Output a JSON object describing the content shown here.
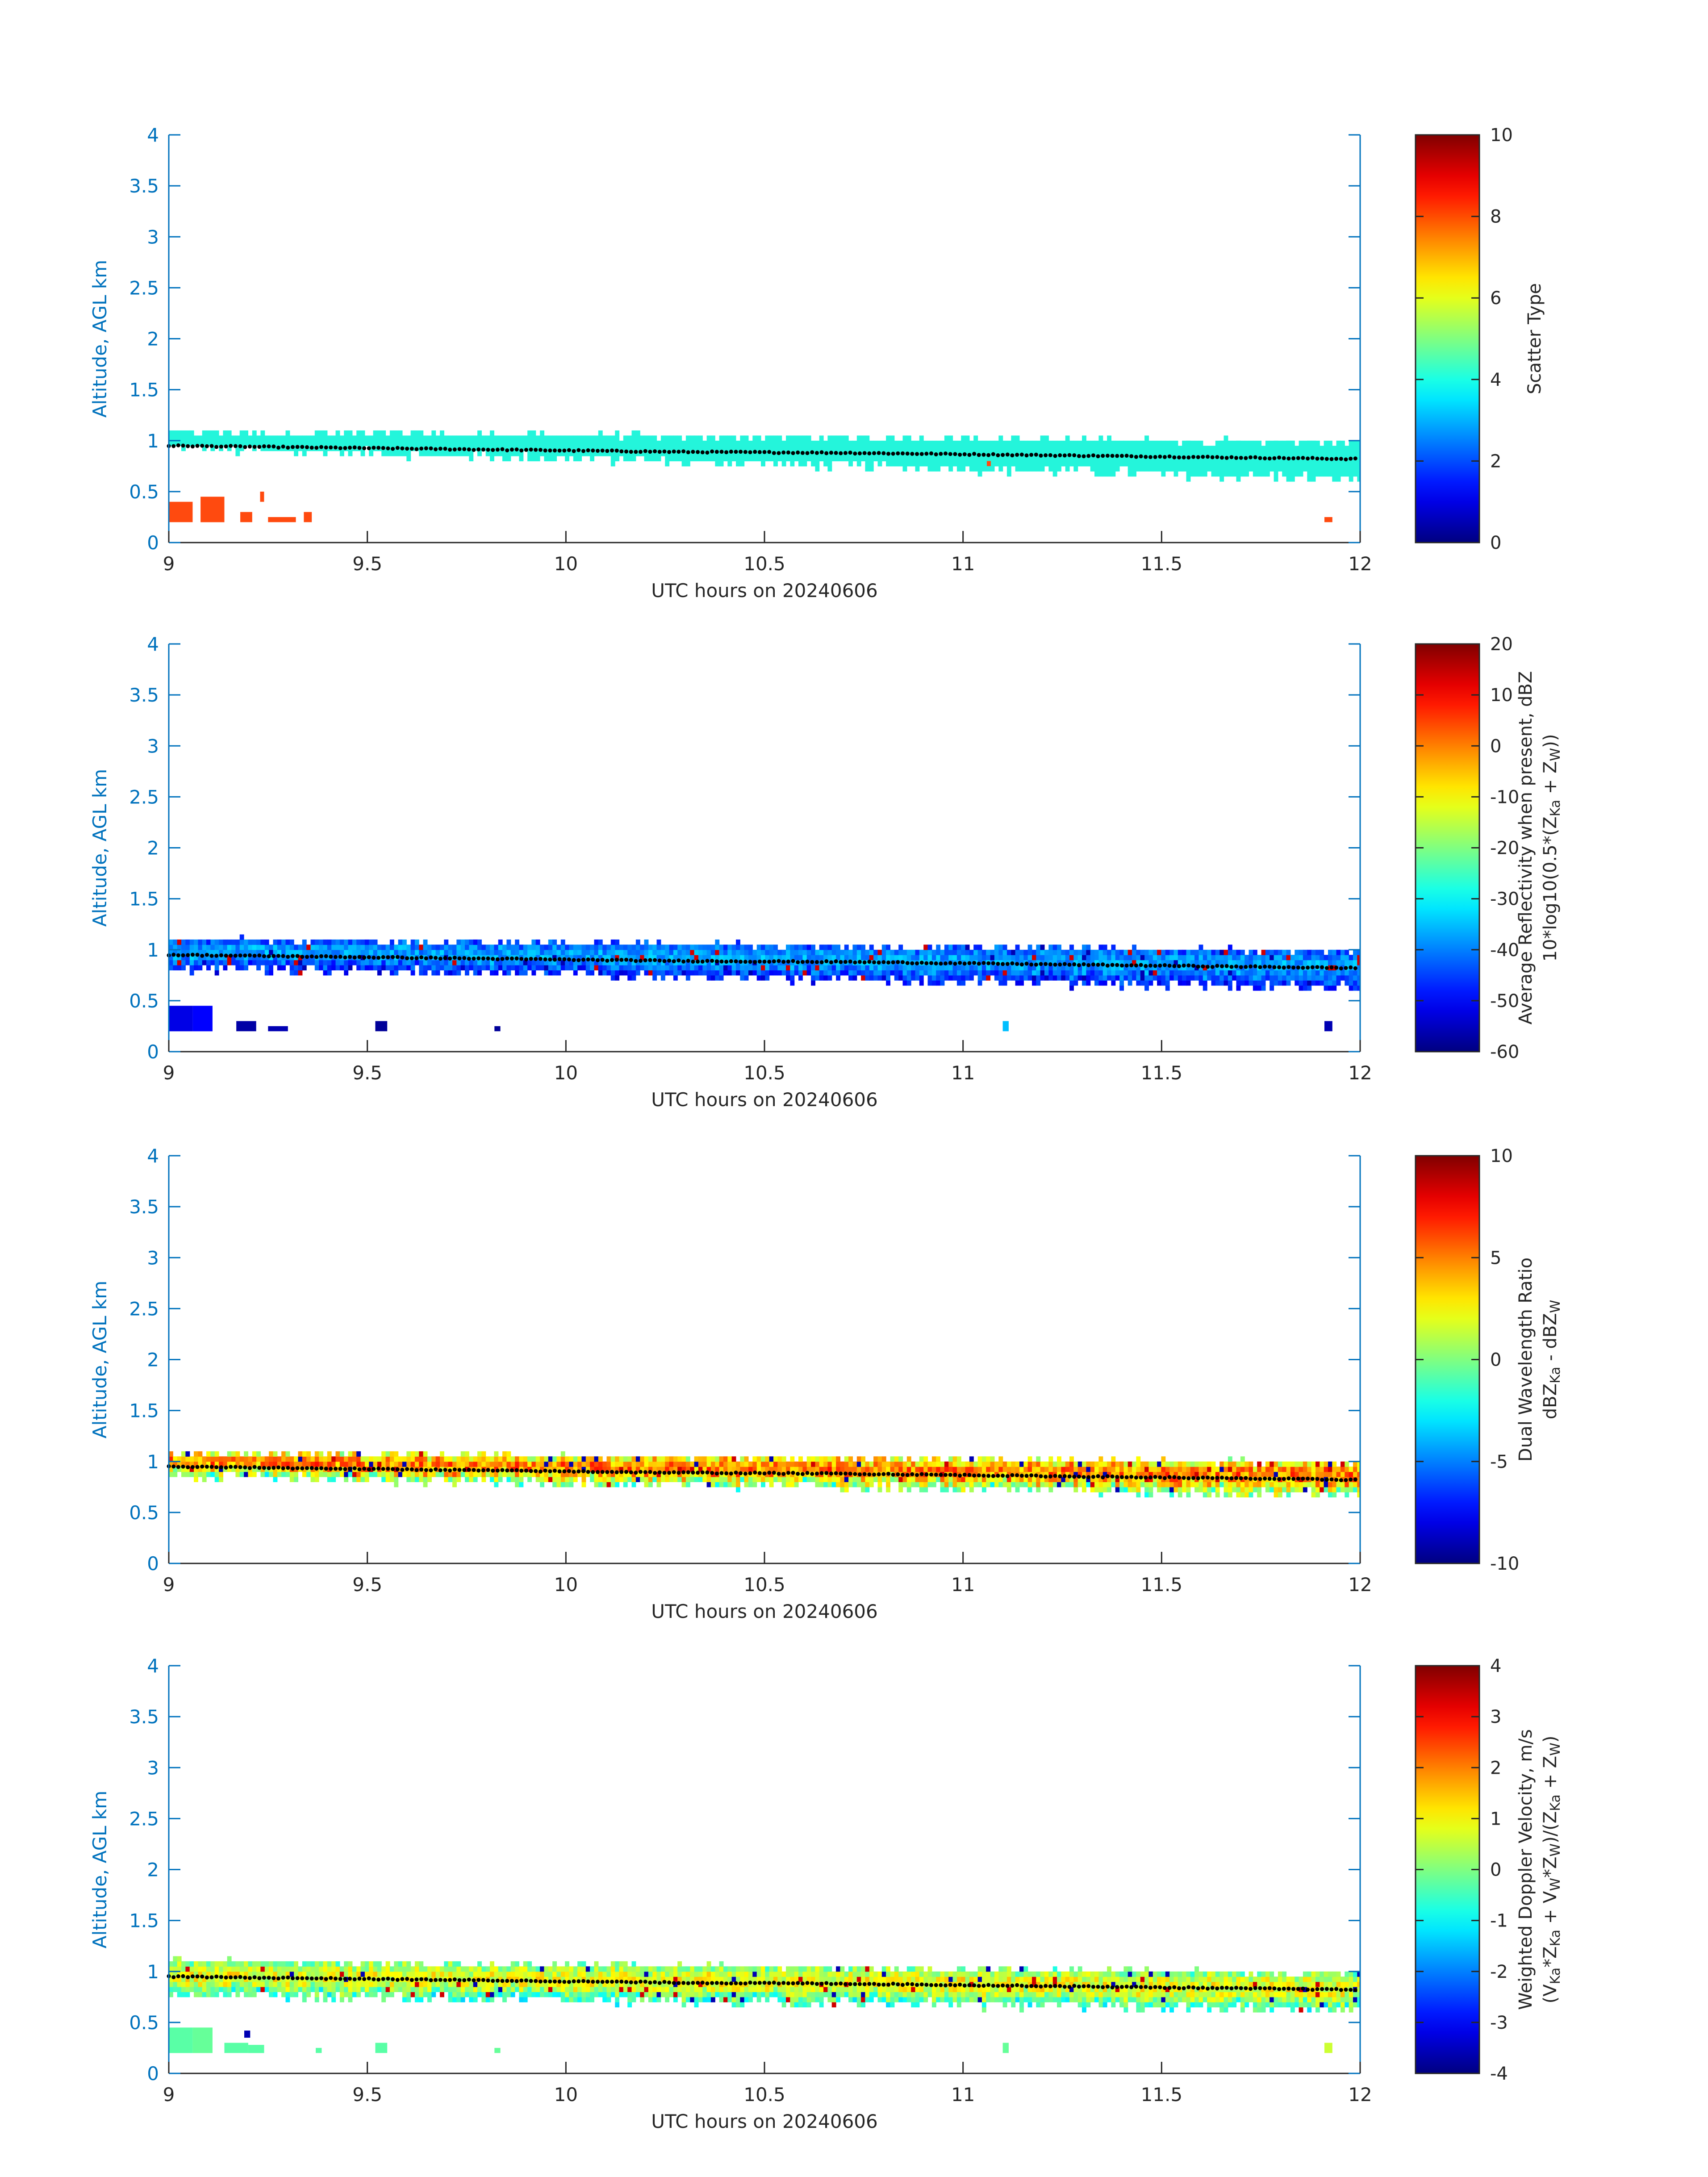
{
  "colors": {
    "axis": "#0072BD",
    "text": "#262626",
    "scatter_cyan": "#24F5DB",
    "scatter_red": "#FF4A0F",
    "cloud_base_dots": "#000000"
  },
  "colormap": "jet",
  "chart_data": [
    {
      "type": "heatmap",
      "xlabel": "UTC hours on 20240606",
      "ylabel": "Altitude, AGL km",
      "xlim": [
        9,
        12
      ],
      "ylim": [
        0,
        4
      ],
      "xticks": [
        "9",
        "9.5",
        "10",
        "10.5",
        "11",
        "11.5",
        "12"
      ],
      "yticks": [
        "0",
        "0.5",
        "1",
        "1.5",
        "2",
        "2.5",
        "3",
        "3.5",
        "4"
      ],
      "colorbar": {
        "label_lines": [
          "Scatter Type"
        ],
        "range": [
          0,
          10
        ],
        "ticks": [
          "0",
          "2",
          "4",
          "6",
          "8",
          "10"
        ]
      },
      "layer": {
        "bottom_km": [
          0.95,
          0.65
        ],
        "top_km": [
          1.05,
          0.95
        ],
        "value_range": [
          3.9,
          3.9
        ],
        "color": "#24F5DB"
      },
      "patches": [
        {
          "x": 9.0,
          "w": 0.06,
          "y0": 0.2,
          "y1": 0.4,
          "v": 8.6
        },
        {
          "x": 9.08,
          "w": 0.06,
          "y0": 0.2,
          "y1": 0.45,
          "v": 8.6
        },
        {
          "x": 9.18,
          "w": 0.03,
          "y0": 0.2,
          "y1": 0.3,
          "v": 8.6
        },
        {
          "x": 9.23,
          "w": 0.01,
          "y0": 0.4,
          "y1": 0.5,
          "v": 8.6
        },
        {
          "x": 9.25,
          "w": 0.07,
          "y0": 0.2,
          "y1": 0.25,
          "v": 8.6
        },
        {
          "x": 9.34,
          "w": 0.02,
          "y0": 0.2,
          "y1": 0.3,
          "v": 8.6
        },
        {
          "x": 11.91,
          "w": 0.02,
          "y0": 0.2,
          "y1": 0.25,
          "v": 8.6
        },
        {
          "x": 11.06,
          "w": 0.01,
          "y0": 0.75,
          "y1": 0.8,
          "v": 8.6
        }
      ],
      "cloud_base_km": [
        0.95,
        0.93,
        0.91,
        0.89,
        0.88,
        0.86,
        0.84,
        0.82
      ]
    },
    {
      "type": "heatmap",
      "xlabel": "UTC hours on 20240606",
      "ylabel": "Altitude, AGL km",
      "xlim": [
        9,
        12
      ],
      "ylim": [
        0,
        4
      ],
      "xticks": [
        "9",
        "9.5",
        "10",
        "10.5",
        "11",
        "11.5",
        "12"
      ],
      "yticks": [
        "0",
        "0.5",
        "1",
        "1.5",
        "2",
        "2.5",
        "3",
        "3.5",
        "4"
      ],
      "colorbar": {
        "label_lines": [
          "Average Reflectivity when present, dBZ",
          "10*log10(0.5*(Z",
          "Ka",
          " + Z",
          "W",
          "))"
        ],
        "range": [
          -60,
          20
        ],
        "ticks": [
          "-60",
          "-50",
          "-40",
          "-30",
          "-20",
          "-10",
          "0",
          "10",
          "20"
        ]
      },
      "layer": {
        "bottom_km": [
          0.85,
          0.65
        ],
        "top_km": [
          1.07,
          0.95
        ],
        "value_range": [
          -55,
          -35
        ],
        "color": ""
      },
      "patches": [
        {
          "x": 9.0,
          "w": 0.06,
          "y0": 0.2,
          "y1": 0.45,
          "v": -52
        },
        {
          "x": 9.06,
          "w": 0.05,
          "y0": 0.2,
          "y1": 0.45,
          "v": -50
        },
        {
          "x": 9.17,
          "w": 0.05,
          "y0": 0.2,
          "y1": 0.3,
          "v": -57
        },
        {
          "x": 9.25,
          "w": 0.05,
          "y0": 0.2,
          "y1": 0.25,
          "v": -56
        },
        {
          "x": 9.52,
          "w": 0.03,
          "y0": 0.2,
          "y1": 0.3,
          "v": -58
        },
        {
          "x": 9.82,
          "w": 0.015,
          "y0": 0.2,
          "y1": 0.25,
          "v": -58
        },
        {
          "x": 11.1,
          "w": 0.015,
          "y0": 0.2,
          "y1": 0.3,
          "v": -35
        },
        {
          "x": 11.91,
          "w": 0.02,
          "y0": 0.2,
          "y1": 0.3,
          "v": -56
        }
      ],
      "cloud_base_km": [
        0.95,
        0.93,
        0.91,
        0.89,
        0.88,
        0.86,
        0.84,
        0.82
      ]
    },
    {
      "type": "heatmap",
      "xlabel": "UTC hours on 20240606",
      "ylabel": "Altitude, AGL km",
      "xlim": [
        9,
        12
      ],
      "ylim": [
        0,
        4
      ],
      "xticks": [
        "9",
        "9.5",
        "10",
        "10.5",
        "11",
        "11.5",
        "12"
      ],
      "yticks": [
        "0",
        "0.5",
        "1",
        "1.5",
        "2",
        "2.5",
        "3",
        "3.5",
        "4"
      ],
      "colorbar": {
        "label_lines": [
          "Dual Wavelength Ratio",
          "dBZ",
          "Ka",
          " - dBZ",
          "W"
        ],
        "range": [
          -10,
          10
        ],
        "ticks": [
          "-10",
          "-5",
          "0",
          "5",
          "10"
        ]
      },
      "layer": {
        "bottom_km": [
          0.88,
          0.7
        ],
        "top_km": [
          1.05,
          0.95
        ],
        "value_range": [
          -3,
          6
        ],
        "color": ""
      },
      "patches": [],
      "cloud_base_km": [
        0.95,
        0.93,
        0.91,
        0.89,
        0.88,
        0.86,
        0.84,
        0.82
      ]
    },
    {
      "type": "heatmap",
      "xlabel": "UTC hours on 20240606",
      "ylabel": "Altitude, AGL km",
      "xlim": [
        9,
        12
      ],
      "ylim": [
        0,
        4
      ],
      "xticks": [
        "9",
        "9.5",
        "10",
        "10.5",
        "11",
        "11.5",
        "12"
      ],
      "yticks": [
        "0",
        "0.5",
        "1",
        "1.5",
        "2",
        "2.5",
        "3",
        "3.5",
        "4"
      ],
      "colorbar": {
        "label_lines": [
          "Weighted Doppler Velocity, m/s",
          "(V",
          "Ka",
          "*Z",
          "Ka",
          " + V",
          "W",
          "*Z",
          "W",
          ")/(Z",
          "Ka",
          " + Z",
          "W",
          ")"
        ],
        "range": [
          -4,
          4
        ],
        "ticks": [
          "-4",
          "-3",
          "-2",
          "-1",
          "0",
          "1",
          "2",
          "3",
          "4"
        ]
      },
      "layer": {
        "bottom_km": [
          0.8,
          0.65
        ],
        "top_km": [
          1.07,
          0.95
        ],
        "value_range": [
          -1.6,
          1.2
        ],
        "color": ""
      },
      "patches": [
        {
          "x": 9.0,
          "w": 0.06,
          "y0": 0.2,
          "y1": 0.45,
          "v": -0.3
        },
        {
          "x": 9.06,
          "w": 0.05,
          "y0": 0.2,
          "y1": 0.45,
          "v": -0.2
        },
        {
          "x": 9.14,
          "w": 0.06,
          "y0": 0.2,
          "y1": 0.3,
          "v": -0.3
        },
        {
          "x": 9.2,
          "w": 0.04,
          "y0": 0.2,
          "y1": 0.28,
          "v": -0.3
        },
        {
          "x": 9.19,
          "w": 0.015,
          "y0": 0.35,
          "y1": 0.42,
          "v": -3.6
        },
        {
          "x": 9.37,
          "w": 0.015,
          "y0": 0.2,
          "y1": 0.25,
          "v": -0.3
        },
        {
          "x": 9.52,
          "w": 0.03,
          "y0": 0.2,
          "y1": 0.3,
          "v": -0.3
        },
        {
          "x": 9.82,
          "w": 0.015,
          "y0": 0.2,
          "y1": 0.25,
          "v": -0.2
        },
        {
          "x": 11.1,
          "w": 0.015,
          "y0": 0.2,
          "y1": 0.3,
          "v": -0.2
        },
        {
          "x": 11.91,
          "w": 0.02,
          "y0": 0.2,
          "y1": 0.3,
          "v": 0.6
        }
      ],
      "cloud_base_km": [
        0.95,
        0.93,
        0.91,
        0.89,
        0.88,
        0.86,
        0.84,
        0.82
      ]
    }
  ]
}
